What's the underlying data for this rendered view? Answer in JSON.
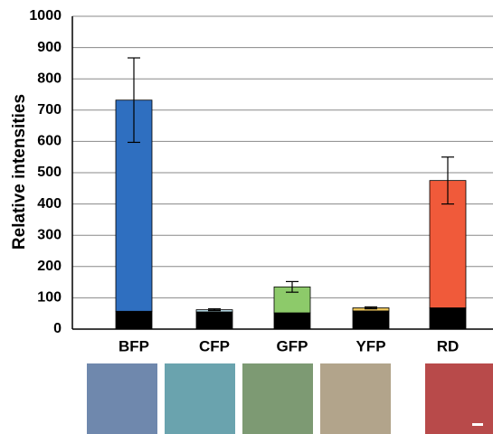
{
  "chart_data": {
    "type": "stacked-bar",
    "y_label": "Relative intensities",
    "categories": [
      "BFP",
      "CFP",
      "GFP",
      "YFP",
      "RD"
    ],
    "series": [
      {
        "color": "#000000",
        "values": [
          57,
          55,
          52,
          58,
          68
        ]
      },
      {
        "colors": [
          "#2f6fc0",
          "#b9dde8",
          "#8dca6a",
          "#e8c25a",
          "#f05a3a"
        ],
        "values": [
          675,
          7,
          83,
          10,
          407
        ],
        "errors": [
          135,
          3,
          17,
          3,
          75
        ]
      }
    ],
    "ylim": [
      0,
      1000
    ],
    "yticks": [
      0,
      100,
      200,
      300,
      400,
      500,
      600,
      700,
      800,
      900,
      1000
    ],
    "grid": true
  }
}
